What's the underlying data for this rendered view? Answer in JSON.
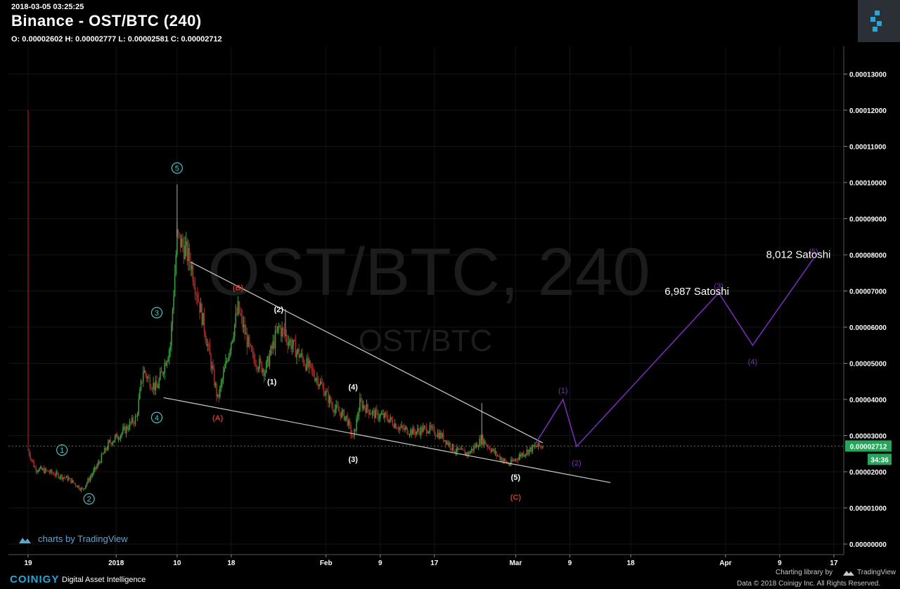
{
  "header": {
    "timestamp": "2018-03-05 03:25:25",
    "title": "Binance - OST/BTC (240)",
    "ohlc": "O: 0.00002602 H: 0.00002777 L: 0.00002581 C: 0.00002712"
  },
  "watermark": {
    "main": "OST/BTC, 240",
    "sub": "OST/BTC"
  },
  "price_tag": {
    "value": "0.00002712",
    "countdown": "34:36",
    "color": "#26a65b"
  },
  "footer": {
    "tv_credit": "charts by TradingView",
    "coinigy": "COINIGY",
    "coinigy_sub": "Digital Asset Intelligence",
    "charting_library": "Charting library by",
    "tradingview": "TradingView",
    "data_credit": "Data © 2018  Coinigy Inc. All Rights Reserved."
  },
  "chart_data": {
    "type": "candlestick",
    "x_tick_labels": [
      "19",
      "2018",
      "10",
      "18",
      "Feb",
      "9",
      "17",
      "Mar",
      "9",
      "18",
      "Apr",
      "9",
      "17"
    ],
    "y_tick_labels": [
      "0.00013000",
      "0.00012000",
      "0.00011000",
      "0.00010000",
      "0.00009000",
      "0.00008000",
      "0.00007000",
      "0.00006000",
      "0.00005000",
      "0.00004000",
      "0.00003000",
      "0.00002000",
      "0.00001000",
      "0.00000000"
    ],
    "ylim": [
      0,
      0.000135
    ],
    "xlim": [
      "2017-12-19",
      "2018-04-19"
    ],
    "last_price": 2.712e-05,
    "price_path": [
      [
        "2017-12-19",
        2.6e-05
      ],
      [
        "2017-12-20",
        2.1e-05
      ],
      [
        "2017-12-22",
        2e-05
      ],
      [
        "2017-12-25",
        1.8e-05
      ],
      [
        "2017-12-27",
        1.5e-05
      ],
      [
        "2017-12-29",
        2.1e-05
      ],
      [
        "2017-12-31",
        2.8e-05
      ],
      [
        "2018-01-02",
        3.1e-05
      ],
      [
        "2018-01-04",
        3.5e-05
      ],
      [
        "2018-01-05",
        4.8e-05
      ],
      [
        "2018-01-06",
        4.5e-05
      ],
      [
        "2018-01-07",
        4.3e-05
      ],
      [
        "2018-01-09",
        5.5e-05
      ],
      [
        "2018-01-10",
        8.5e-05
      ],
      [
        "2018-01-11",
        8.2e-05
      ],
      [
        "2018-01-12",
        7.8e-05
      ],
      [
        "2018-01-14",
        6e-05
      ],
      [
        "2018-01-16",
        4e-05
      ],
      [
        "2018-01-17",
        4.8e-05
      ],
      [
        "2018-01-19",
        6.5e-05
      ],
      [
        "2018-01-21",
        5.2e-05
      ],
      [
        "2018-01-23",
        4.8e-05
      ],
      [
        "2018-01-25",
        6e-05
      ],
      [
        "2018-01-27",
        5.5e-05
      ],
      [
        "2018-01-29",
        5e-05
      ],
      [
        "2018-01-31",
        4.5e-05
      ],
      [
        "2018-02-02",
        3.8e-05
      ],
      [
        "2018-02-04",
        3.5e-05
      ],
      [
        "2018-02-05",
        2.9e-05
      ],
      [
        "2018-02-06",
        3.9e-05
      ],
      [
        "2018-02-08",
        3.6e-05
      ],
      [
        "2018-02-10",
        3.5e-05
      ],
      [
        "2018-02-12",
        3.2e-05
      ],
      [
        "2018-02-14",
        3.1e-05
      ],
      [
        "2018-02-16",
        3.2e-05
      ],
      [
        "2018-02-18",
        3e-05
      ],
      [
        "2018-02-20",
        2.6e-05
      ],
      [
        "2018-02-22",
        2.5e-05
      ],
      [
        "2018-02-24",
        2.9e-05
      ],
      [
        "2018-02-26",
        2.5e-05
      ],
      [
        "2018-02-28",
        2.2e-05
      ],
      [
        "2018-03-02",
        2.5e-05
      ],
      [
        "2018-03-04",
        2.7e-05
      ],
      [
        "2018-03-05",
        2.712e-05
      ]
    ],
    "spike_wicks": [
      [
        "2017-12-19",
        0.00012
      ],
      [
        "2018-01-10",
        9.95e-05
      ],
      [
        "2018-01-26",
        6.5e-05
      ],
      [
        "2018-02-24",
        3.9e-05
      ]
    ],
    "trendlines": [
      {
        "from": [
          "2018-01-12",
          7.8e-05
        ],
        "to": [
          "2018-03-05",
          2.8e-05
        ],
        "color": "#cccccc"
      },
      {
        "from": [
          "2018-01-08",
          4.05e-05
        ],
        "to": [
          "2018-03-15",
          1.7e-05
        ],
        "color": "#cccccc"
      }
    ],
    "wave_labels": [
      {
        "text": "1",
        "style": "circled",
        "color": "#4fc1c1",
        "x": "2017-12-24",
        "y": 2.6e-05
      },
      {
        "text": "2",
        "style": "circled",
        "color": "#4fc1c1",
        "x": "2017-12-28",
        "y": 1.25e-05
      },
      {
        "text": "3",
        "style": "circled",
        "color": "#4fc1c1",
        "x": "2018-01-07",
        "y": 6.4e-05
      },
      {
        "text": "4",
        "style": "circled",
        "color": "#4fc1c1",
        "x": "2018-01-07",
        "y": 3.5e-05
      },
      {
        "text": "5",
        "style": "circled",
        "color": "#4fc1c1",
        "x": "2018-01-10",
        "y": 0.000104
      },
      {
        "text": "(A)",
        "style": "paren",
        "color": "#c0392b",
        "x": "2018-01-16",
        "y": 3.5e-05
      },
      {
        "text": "(B)",
        "style": "paren",
        "color": "#c0392b",
        "x": "2018-01-19",
        "y": 7.1e-05
      },
      {
        "text": "(C)",
        "style": "paren",
        "color": "#c0392b",
        "x": "2018-03-01",
        "y": 1.3e-05
      },
      {
        "text": "(1)",
        "style": "paren",
        "color": "#ffffff",
        "x": "2018-01-24",
        "y": 4.5e-05
      },
      {
        "text": "(2)",
        "style": "paren",
        "color": "#ffffff",
        "x": "2018-01-25",
        "y": 6.5e-05
      },
      {
        "text": "(3)",
        "style": "paren",
        "color": "#ffffff",
        "x": "2018-02-05",
        "y": 2.35e-05
      },
      {
        "text": "(4)",
        "style": "paren",
        "color": "#ffffff",
        "x": "2018-02-05",
        "y": 4.35e-05
      },
      {
        "text": "(5)",
        "style": "paren",
        "color": "#ffffff",
        "x": "2018-03-01",
        "y": 1.85e-05
      }
    ],
    "projection": {
      "color": "#7b2fbf",
      "points": [
        [
          "2018-03-04",
          2.8e-05
        ],
        [
          "2018-03-08",
          4e-05
        ],
        [
          "2018-03-10",
          2.7e-05
        ],
        [
          "2018-03-31",
          6.95e-05
        ],
        [
          "2018-04-05",
          5.5e-05
        ],
        [
          "2018-04-14",
          7.9e-05
        ]
      ],
      "labels": [
        {
          "text": "(1)",
          "x": "2018-03-08",
          "y": 4.25e-05
        },
        {
          "text": "(2)",
          "x": "2018-03-10",
          "y": 2.25e-05
        },
        {
          "text": "(3)",
          "x": "2018-03-31",
          "y": 7.15e-05
        },
        {
          "text": "(4)",
          "x": "2018-04-05",
          "y": 5.05e-05
        },
        {
          "text": "(5)",
          "x": "2018-04-14",
          "y": 8.1e-05
        }
      ],
      "targets": [
        {
          "text": "6,987 Satoshi",
          "x": "2018-03-23",
          "y": 6.987e-05
        },
        {
          "text": "8,012 Satoshi",
          "x": "2018-04-07",
          "y": 8.012e-05
        }
      ]
    }
  }
}
